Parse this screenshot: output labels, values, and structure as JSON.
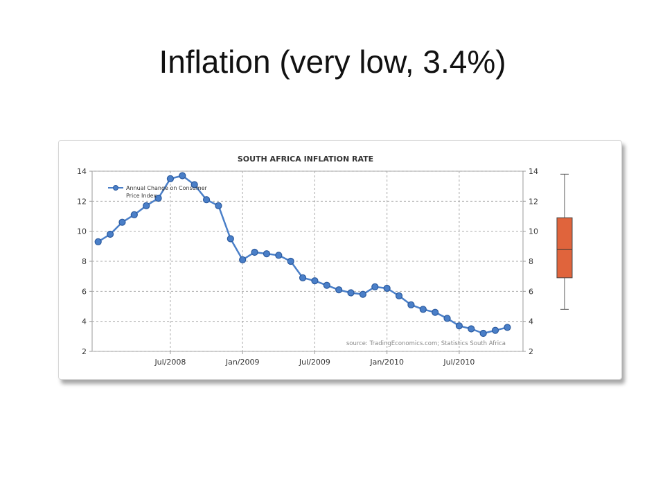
{
  "slide": {
    "title": "Inflation (very low, 3.4%)"
  },
  "chart_data": {
    "type": "line",
    "title": "SOUTH AFRICA INFLATION RATE",
    "xlabel": "",
    "ylabel": "",
    "ylim": [
      2,
      14
    ],
    "yticks": [
      2,
      4,
      6,
      8,
      10,
      12,
      14
    ],
    "grid": true,
    "legend_position": "top-left",
    "x_tick_labels": [
      "Jul/2008",
      "Jan/2009",
      "Jul/2009",
      "Jan/2010",
      "Jul/2010"
    ],
    "x_tick_dates": [
      "2008-07",
      "2009-01",
      "2009-07",
      "2010-01",
      "2010-07"
    ],
    "source_text": "source: TradingEconomics.com; Statistics South Africa",
    "series": [
      {
        "name": "Annual Change on Consumer Price Index",
        "color": "#4a7fc8",
        "x": [
          "2008-01",
          "2008-02",
          "2008-03",
          "2008-04",
          "2008-05",
          "2008-06",
          "2008-07",
          "2008-08",
          "2008-09",
          "2008-10",
          "2008-11",
          "2008-12",
          "2009-01",
          "2009-02",
          "2009-03",
          "2009-04",
          "2009-05",
          "2009-06",
          "2009-07",
          "2009-08",
          "2009-09",
          "2009-10",
          "2009-11",
          "2009-12",
          "2010-01",
          "2010-02",
          "2010-03",
          "2010-04",
          "2010-05",
          "2010-06",
          "2010-07",
          "2010-08",
          "2010-09",
          "2010-10",
          "2010-11"
        ],
        "values": [
          9.3,
          9.8,
          10.6,
          11.1,
          11.7,
          12.2,
          13.5,
          13.7,
          13.1,
          12.1,
          11.7,
          9.5,
          8.1,
          8.6,
          8.5,
          8.4,
          8.0,
          6.9,
          6.7,
          6.4,
          6.1,
          5.9,
          5.8,
          6.3,
          6.2,
          5.7,
          5.1,
          4.8,
          4.6,
          4.2,
          3.7,
          3.5,
          3.2,
          3.4,
          3.6
        ]
      }
    ],
    "boxplot": {
      "fill": "#e0643c",
      "min": 4.8,
      "q1": 6.9,
      "median": 8.8,
      "q3": 10.9,
      "max": 13.8
    }
  }
}
